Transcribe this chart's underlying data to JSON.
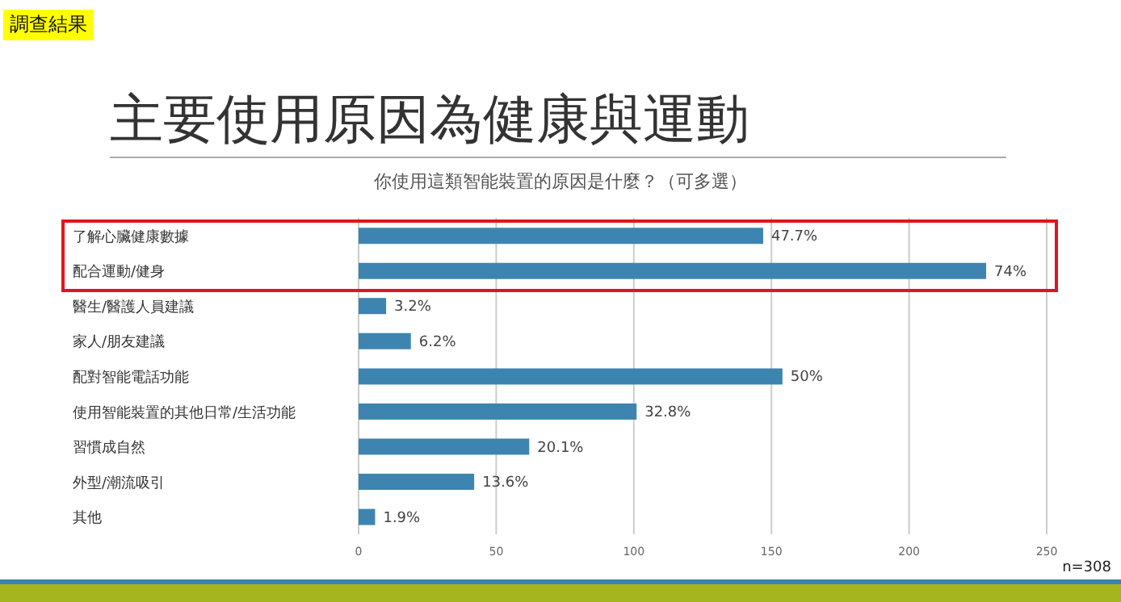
{
  "chart_data": {
    "type": "bar",
    "orientation": "horizontal",
    "title": "主要使用原因為健康與運動",
    "subtitle": "你使用這類智能裝置的原因是什麼？（可多選）",
    "annotations": [
      "調查結果",
      "n=308",
      {
        "text": "47.7%",
        "y": "了解心臟健康數據",
        "x": 147
      },
      {
        "text": "74%",
        "y": "配合運動/健身",
        "x": 228
      },
      {
        "text": "3.2%",
        "y": "醫生/醫護人員建議",
        "x": 10
      },
      {
        "text": "6.2%",
        "y": "家人/朋友建議",
        "x": 19
      },
      {
        "text": "50%",
        "y": "配對智能電話功能",
        "x": 154
      },
      {
        "text": "32.8%",
        "y": "使用智能裝置的其他日常/生活功能",
        "x": 101
      },
      {
        "text": "20.1%",
        "y": "習慣成自然",
        "x": 62
      },
      {
        "text": "13.6%",
        "y": "外型/潮流吸引",
        "x": 42
      },
      {
        "text": "1.9%",
        "y": "其他",
        "x": 6
      }
    ],
    "categories": [
      "了解心臟健康數據",
      "配合運動/健身",
      "醫生/醫護人員建議",
      "家人/朋友建議",
      "配對智能電話功能",
      "使用智能裝置的其他日常/生活功能",
      "習慣成自然",
      "外型/潮流吸引",
      "其他"
    ],
    "values": [
      147,
      228,
      10,
      19,
      154,
      101,
      62,
      42,
      6
    ],
    "color": "#3d85b0",
    "xlim": [
      0,
      250
    ],
    "xticks": [
      0,
      50,
      100,
      150,
      200,
      250
    ],
    "grid": "x",
    "legend": false
  }
}
